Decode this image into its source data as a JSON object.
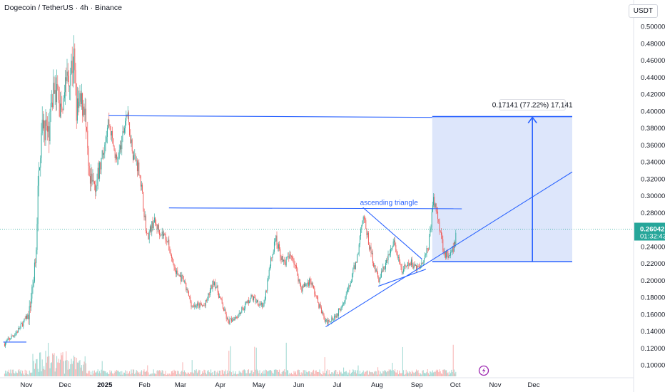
{
  "header": {
    "title": "Dogecoin / TetherUS · 4h · Binance",
    "currency": "USDT"
  },
  "colors": {
    "accent": "#2962ff",
    "up": "#26a69a",
    "down": "#ef5350",
    "range_fill": "#dbe5fb"
  },
  "chart_data": {
    "type": "candlestick",
    "symbol": "Dogecoin / TetherUS",
    "interval": "4h",
    "exchange": "Binance",
    "y_unit": "USDT",
    "ylim": [
      0.09,
      0.51
    ],
    "y_ticks": [
      "0.50000",
      "0.48000",
      "0.46000",
      "0.44000",
      "0.42000",
      "0.40000",
      "0.38000",
      "0.36000",
      "0.34000",
      "0.32000",
      "0.30000",
      "0.28000",
      "0.26000",
      "0.24000",
      "0.22000",
      "0.20000",
      "0.18000",
      "0.16000",
      "0.14000",
      "0.12000",
      "0.10000"
    ],
    "x_ticks": [
      {
        "label": "Nov",
        "date": "2024-11-01"
      },
      {
        "label": "Dec",
        "date": "2024-12-01"
      },
      {
        "label": "2025",
        "date": "2025-01-01",
        "bold": true
      },
      {
        "label": "Feb",
        "date": "2025-02-01"
      },
      {
        "label": "Mar",
        "date": "2025-03-01"
      },
      {
        "label": "Apr",
        "date": "2025-04-01"
      },
      {
        "label": "May",
        "date": "2025-05-01"
      },
      {
        "label": "Jun",
        "date": "2025-06-01"
      },
      {
        "label": "Jul",
        "date": "2025-07-01"
      },
      {
        "label": "Aug",
        "date": "2025-08-01"
      },
      {
        "label": "Sep",
        "date": "2025-09-01"
      },
      {
        "label": "Oct",
        "date": "2025-10-01"
      },
      {
        "label": "Nov",
        "date": "2025-11-01"
      },
      {
        "label": "Dec",
        "date": "2025-12-01"
      }
    ],
    "price_path": [
      [
        "2024-10-15",
        0.125
      ],
      [
        "2024-10-25",
        0.14
      ],
      [
        "2024-11-03",
        0.16
      ],
      [
        "2024-11-08",
        0.22
      ],
      [
        "2024-11-11",
        0.34
      ],
      [
        "2024-11-14",
        0.39
      ],
      [
        "2024-11-18",
        0.37
      ],
      [
        "2024-11-23",
        0.44
      ],
      [
        "2024-11-27",
        0.4
      ],
      [
        "2024-12-02",
        0.44
      ],
      [
        "2024-12-08",
        0.46
      ],
      [
        "2024-12-10",
        0.4
      ],
      [
        "2024-12-16",
        0.41
      ],
      [
        "2024-12-20",
        0.31
      ],
      [
        "2024-12-27",
        0.32
      ],
      [
        "2025-01-04",
        0.39
      ],
      [
        "2025-01-10",
        0.34
      ],
      [
        "2025-01-14",
        0.36
      ],
      [
        "2025-01-18",
        0.4
      ],
      [
        "2025-01-23",
        0.35
      ],
      [
        "2025-01-28",
        0.33
      ],
      [
        "2025-02-03",
        0.25
      ],
      [
        "2025-02-08",
        0.27
      ],
      [
        "2025-02-12",
        0.26
      ],
      [
        "2025-02-18",
        0.25
      ],
      [
        "2025-02-25",
        0.21
      ],
      [
        "2025-03-03",
        0.2
      ],
      [
        "2025-03-10",
        0.17
      ],
      [
        "2025-03-20",
        0.17
      ],
      [
        "2025-03-27",
        0.2
      ],
      [
        "2025-04-07",
        0.15
      ],
      [
        "2025-04-15",
        0.16
      ],
      [
        "2025-04-25",
        0.18
      ],
      [
        "2025-05-05",
        0.17
      ],
      [
        "2025-05-10",
        0.22
      ],
      [
        "2025-05-14",
        0.25
      ],
      [
        "2025-05-20",
        0.22
      ],
      [
        "2025-05-27",
        0.23
      ],
      [
        "2025-06-03",
        0.19
      ],
      [
        "2025-06-10",
        0.2
      ],
      [
        "2025-06-17",
        0.17
      ],
      [
        "2025-06-22",
        0.15
      ],
      [
        "2025-07-01",
        0.16
      ],
      [
        "2025-07-10",
        0.19
      ],
      [
        "2025-07-17",
        0.23
      ],
      [
        "2025-07-21",
        0.28
      ],
      [
        "2025-07-26",
        0.24
      ],
      [
        "2025-08-02",
        0.2
      ],
      [
        "2025-08-08",
        0.22
      ],
      [
        "2025-08-14",
        0.245
      ],
      [
        "2025-08-20",
        0.21
      ],
      [
        "2025-08-27",
        0.22
      ],
      [
        "2025-09-03",
        0.215
      ],
      [
        "2025-09-10",
        0.24
      ],
      [
        "2025-09-14",
        0.295
      ],
      [
        "2025-09-18",
        0.27
      ],
      [
        "2025-09-22",
        0.235
      ],
      [
        "2025-09-26",
        0.225
      ],
      [
        "2025-09-30",
        0.2404
      ],
      [
        "2025-10-02",
        0.26042
      ]
    ],
    "last_price": {
      "value": 0.26042,
      "label": "0.26042",
      "countdown": "01:32:43"
    },
    "drawings": {
      "resistance_line": {
        "from": [
          "2025-01-04",
          0.3945
        ],
        "to": [
          "2025-09-13",
          0.3925
        ]
      },
      "neckline": {
        "from": [
          "2025-02-20",
          0.2855
        ],
        "to": [
          "2025-10-06",
          0.2845
        ]
      },
      "ascending_triangle_support": {
        "from": [
          "2025-06-22",
          0.145
        ],
        "to": [
          "2025-12-31",
          0.328
        ]
      },
      "triangle_upper": {
        "from": [
          "2025-07-21",
          0.286
        ],
        "to": [
          "2025-09-05",
          0.225
        ]
      },
      "triangle_lower": {
        "from": [
          "2025-08-02",
          0.193
        ],
        "to": [
          "2025-09-08",
          0.213
        ]
      },
      "early_support": {
        "from": [
          "2024-10-14",
          0.127
        ],
        "to": [
          "2024-11-01",
          0.127
        ]
      },
      "price_range": {
        "start": "2025-09-13",
        "end": "2025-12-31",
        "low": 0.222,
        "high": 0.3934,
        "arrow_date": "2025-11-30",
        "label": "0.17141 (77.22%) 17,141"
      },
      "triangle_label": "ascending triangle"
    },
    "grid": false,
    "legend": "none",
    "volume_panel": true
  }
}
